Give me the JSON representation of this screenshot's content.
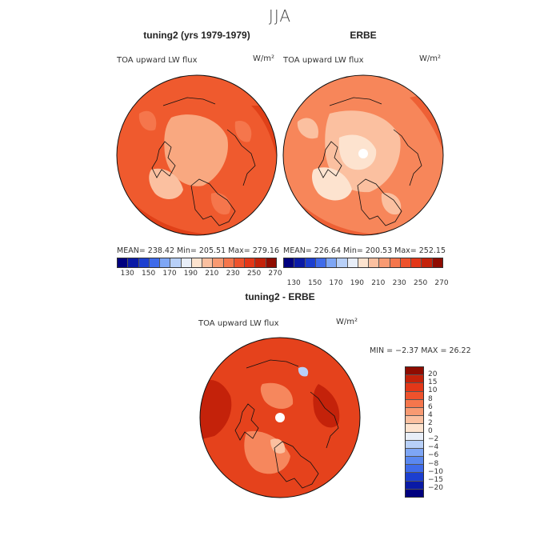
{
  "season": "JJA",
  "panels": {
    "model": {
      "title": "tuning2 (yrs 1979-1979)",
      "variable": "TOA upward LW flux",
      "units": "W/m²",
      "stats": "MEAN= 238.42   Min= 205.51   Max= 279.16"
    },
    "obs": {
      "title": "ERBE",
      "variable": "TOA upward LW flux",
      "units": "W/m²",
      "stats": "MEAN= 226.64   Min= 200.53   Max= 252.15"
    },
    "diff": {
      "title": "tuning2 - ERBE",
      "variable": "TOA upward LW flux",
      "units": "W/m²",
      "stats": "MIN =   −2.37  MAX =   26.22"
    }
  },
  "colorbar_main": {
    "ticks": [
      "130",
      "150",
      "170",
      "190",
      "210",
      "230",
      "250",
      "270"
    ],
    "colors": [
      "#00007f",
      "#0a1aa6",
      "#1c3fd0",
      "#3f6bea",
      "#7ea6f5",
      "#b8d0f8",
      "#e8eef8",
      "#fde3cf",
      "#fbc0a0",
      "#f89a72",
      "#f5764c",
      "#ee522c",
      "#e33718",
      "#c4220a",
      "#8f0c00"
    ]
  },
  "colorbar_diff": {
    "ticks": [
      "20",
      "15",
      "10",
      "8",
      "6",
      "4",
      "2",
      "0",
      "−2",
      "−4",
      "−6",
      "−8",
      "−10",
      "−15",
      "−20"
    ],
    "colors": [
      "#8f0c00",
      "#c4220a",
      "#e33718",
      "#ee522c",
      "#f5764c",
      "#f89a72",
      "#fbc0a0",
      "#fde3cf",
      "#e8eef8",
      "#b8d0f8",
      "#7ea6f5",
      "#5a88f0",
      "#3f6bea",
      "#1c3fd0",
      "#0a1aa6",
      "#00007f"
    ]
  },
  "map_colors": {
    "model_bg": "#ef5a2e",
    "model_mid": "#f5764c",
    "model_light": "#f9a880",
    "model_dark": "#e04018",
    "obs_bg": "#f7865a",
    "obs_light": "#fbc0a0",
    "obs_pale": "#fde3cf",
    "obs_dark": "#ee6035",
    "diff_bg": "#e5421c",
    "diff_dark": "#c4220a",
    "diff_light": "#f6875d",
    "diff_pale": "#fbc0a0"
  }
}
